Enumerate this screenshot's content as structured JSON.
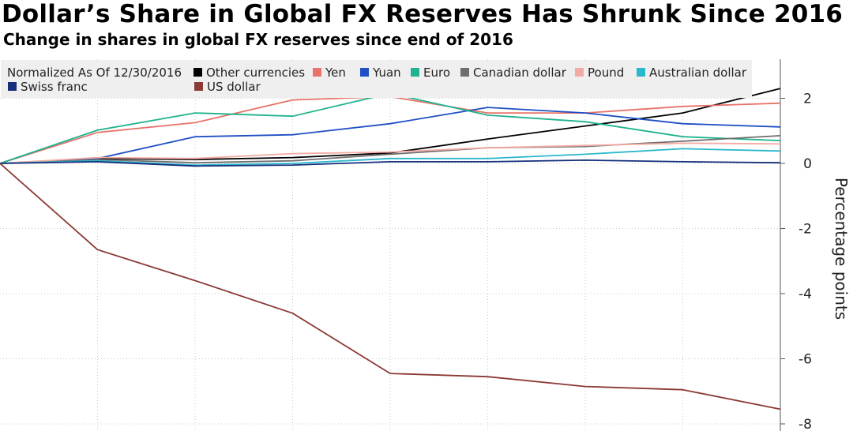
{
  "title": "Dollar’s Share in Global FX Reserves Has Shrunk Since 2016",
  "subtitle": "Change in shares in global FX reserves since end of 2016",
  "chart_data": {
    "type": "line",
    "title": "Dollar’s Share in Global FX Reserves Has Shrunk Since 2016",
    "subtitle": "Change in shares in global FX reserves since end of 2016",
    "legend_note": "Normalized As Of 12/30/2016",
    "ylabel": "Percentage points",
    "xlabel": "",
    "ylim": [
      -8,
      3
    ],
    "yticks": [
      2,
      0,
      -2,
      -4,
      -6,
      -8
    ],
    "y_axis_side": "right",
    "grid": true,
    "legend_position": "top-left",
    "x": [
      0,
      1,
      2,
      3,
      4,
      5,
      6,
      7,
      8
    ],
    "series": [
      {
        "name": "Other currencies",
        "color": "#000000",
        "values": [
          0,
          0.15,
          0.12,
          0.18,
          0.32,
          0.75,
          1.15,
          1.55,
          2.3
        ]
      },
      {
        "name": "Yen",
        "color": "#e8736a",
        "values": [
          0,
          0.95,
          1.25,
          1.95,
          2.05,
          1.55,
          1.55,
          1.75,
          1.85
        ]
      },
      {
        "name": "Yuan",
        "color": "#1f4fc4",
        "values": [
          0,
          0.15,
          0.82,
          0.88,
          1.22,
          1.72,
          1.55,
          1.22,
          1.12
        ]
      },
      {
        "name": "Euro",
        "color": "#1fb38e",
        "values": [
          0,
          1.02,
          1.55,
          1.45,
          2.15,
          1.48,
          1.28,
          0.82,
          0.7
        ]
      },
      {
        "name": "Canadian dollar",
        "color": "#6e6e6e",
        "values": [
          0,
          0.12,
          0.02,
          0.08,
          0.28,
          0.48,
          0.52,
          0.68,
          0.85
        ]
      },
      {
        "name": "Pound",
        "color": "#f2aba3",
        "values": [
          0,
          0.18,
          0.15,
          0.3,
          0.35,
          0.48,
          0.55,
          0.62,
          0.6
        ]
      },
      {
        "name": "Australian dollar",
        "color": "#29b8cc",
        "values": [
          0,
          0.08,
          -0.05,
          0,
          0.15,
          0.15,
          0.28,
          0.45,
          0.38
        ]
      },
      {
        "name": "Swiss franc",
        "color": "#152f7a",
        "values": [
          0,
          0.05,
          -0.08,
          -0.05,
          0.05,
          0.05,
          0.1,
          0.05,
          0.02
        ]
      },
      {
        "name": "US dollar",
        "color": "#8b3a34",
        "values": [
          0,
          -2.65,
          -3.6,
          -4.6,
          -6.45,
          -6.55,
          -6.85,
          -6.95,
          -7.55
        ]
      }
    ]
  }
}
